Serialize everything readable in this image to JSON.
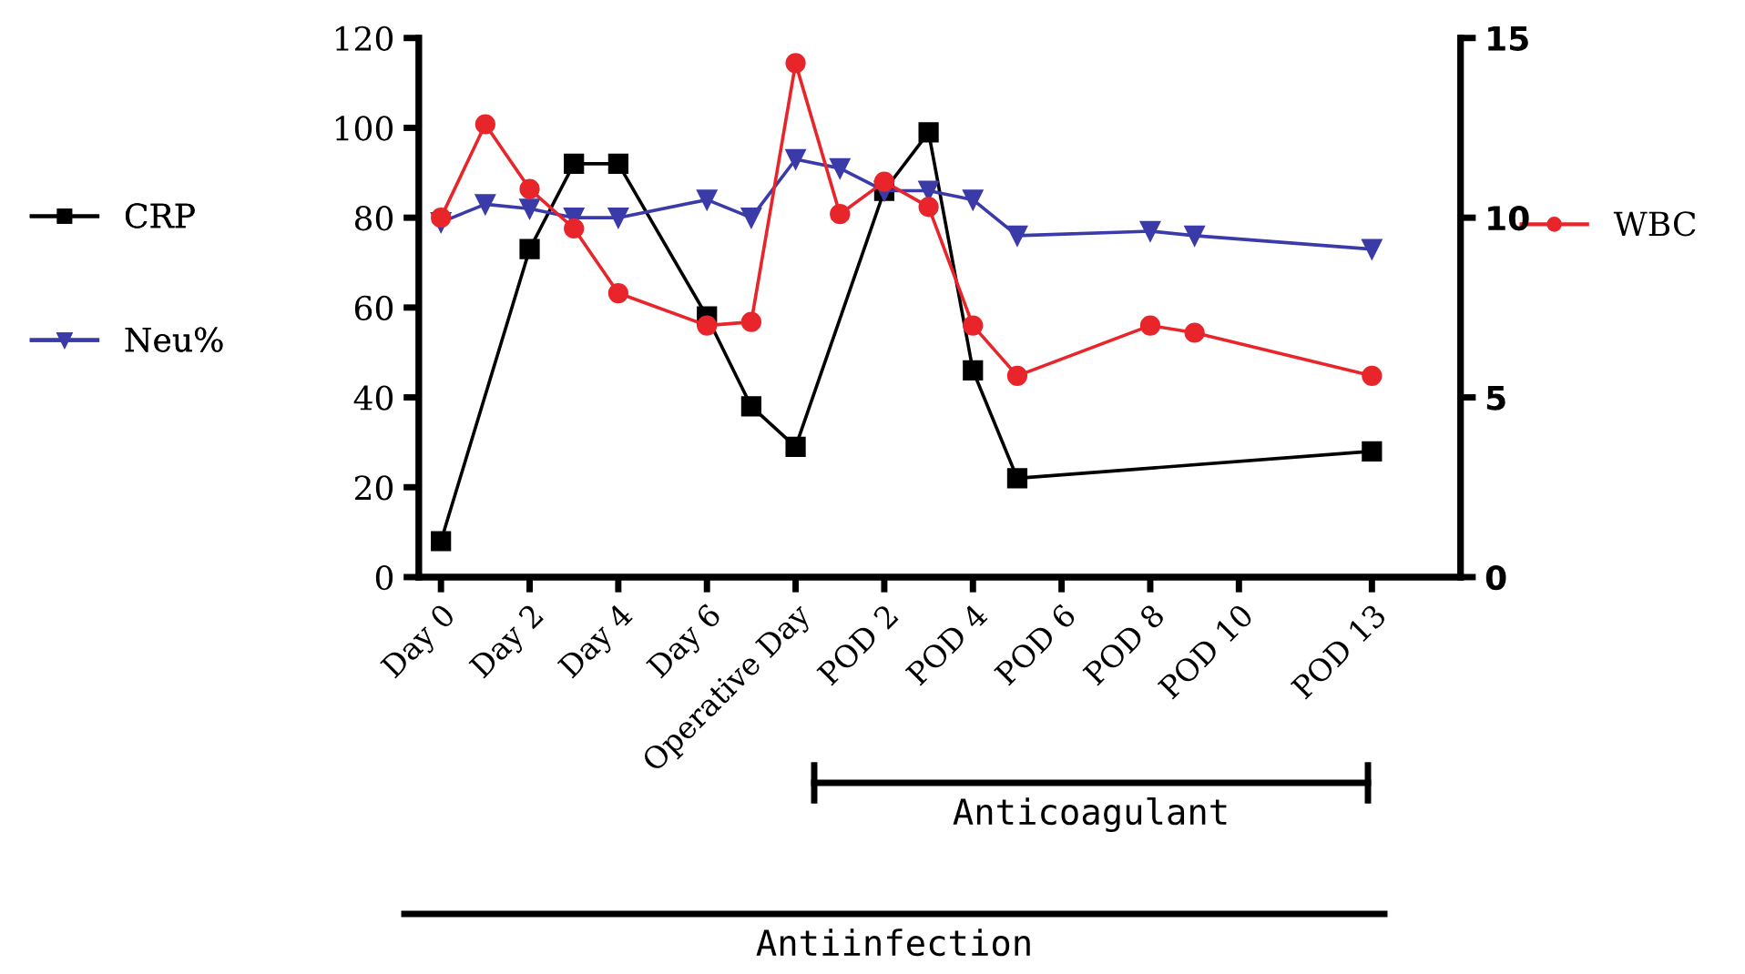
{
  "chart_data": {
    "type": "line",
    "categories": [
      "Day 0",
      null,
      "Day 2",
      null,
      "Day 4",
      null,
      "Day 6",
      null,
      "Operative Day",
      null,
      "POD 2",
      null,
      "POD 4",
      null,
      "POD 6",
      null,
      "POD 8",
      null,
      "POD 10",
      null,
      null,
      "POD 13"
    ],
    "series": [
      {
        "name": "CRP",
        "color": "#000000",
        "marker": "square",
        "values": [
          8,
          null,
          73,
          92,
          92,
          null,
          58,
          38,
          29,
          null,
          86,
          99,
          46,
          22,
          null,
          null,
          null,
          null,
          null,
          null,
          null,
          28
        ]
      },
      {
        "name": "Neu%",
        "color": "#3a3aa8",
        "marker": "triangle",
        "values": [
          79,
          83,
          82,
          80,
          80,
          null,
          84,
          80,
          93,
          91,
          86,
          86,
          84,
          76,
          null,
          null,
          77,
          76,
          null,
          null,
          null,
          73
        ]
      },
      {
        "name": "WBC",
        "color": "#e8252a",
        "marker": "circle",
        "axis": "y2",
        "values": [
          10.0,
          12.6,
          10.8,
          9.7,
          7.9,
          null,
          7.0,
          7.1,
          14.3,
          10.1,
          11.0,
          10.3,
          7.0,
          5.6,
          null,
          null,
          7.0,
          6.8,
          null,
          null,
          null,
          5.6
        ]
      }
    ],
    "ylim": [
      0,
      120
    ],
    "yticks": [
      0,
      20,
      40,
      60,
      80,
      100,
      120
    ],
    "y2lim": [
      0,
      15
    ],
    "y2ticks": [
      0,
      5,
      10,
      15
    ],
    "annotations": [
      "Anticoagulant",
      "Antiinfection"
    ],
    "legend": "left",
    "line_style": "solid"
  }
}
